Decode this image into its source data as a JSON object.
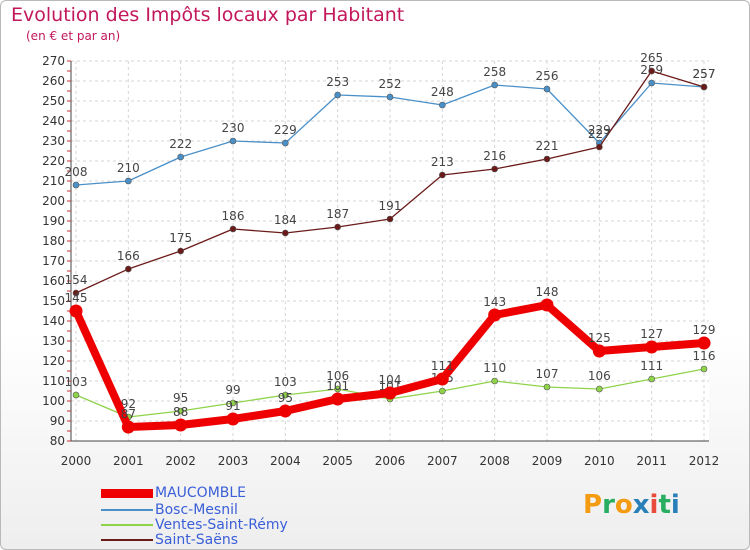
{
  "title": "Evolution des Impôts locaux par Habitant",
  "subtitle": "(en € et par an)",
  "logo": {
    "letters": [
      "P",
      "r",
      "o",
      "x",
      "i",
      "t",
      "i"
    ],
    "colors": [
      "#f39c12",
      "#27ae60",
      "#f39c12",
      "#2980b9",
      "#e74c3c",
      "#27ae60",
      "#2980b9"
    ]
  },
  "chart_data": {
    "type": "line",
    "x": [
      "2000",
      "2001",
      "2002",
      "2003",
      "2004",
      "2005",
      "2006",
      "2007",
      "2008",
      "2009",
      "2010",
      "2011",
      "2012"
    ],
    "ylim": [
      80,
      270
    ],
    "yticks": [
      80,
      90,
      100,
      110,
      120,
      130,
      140,
      150,
      160,
      170,
      180,
      190,
      200,
      210,
      220,
      230,
      240,
      250,
      260,
      270
    ],
    "grid": true,
    "legend_position": "bottom-left",
    "series": [
      {
        "name": "MAUCOMBLE",
        "color": "#ee0000",
        "emphasis": true,
        "values": [
          145,
          87,
          88,
          91,
          95,
          101,
          104,
          111,
          143,
          148,
          125,
          127,
          129
        ]
      },
      {
        "name": "Bosc-Mesnil",
        "color": "#4a90c8",
        "values": [
          208,
          210,
          222,
          230,
          229,
          253,
          252,
          248,
          258,
          256,
          229,
          259,
          257
        ]
      },
      {
        "name": "Ventes-Saint-Rémy",
        "color": "#8fd34a",
        "values": [
          103,
          92,
          95,
          99,
          103,
          106,
          101,
          105,
          110,
          107,
          106,
          111,
          116
        ]
      },
      {
        "name": "Saint-Saëns",
        "color": "#6b1a1a",
        "values": [
          154,
          166,
          175,
          186,
          184,
          187,
          191,
          213,
          216,
          221,
          227,
          265,
          257
        ]
      }
    ]
  }
}
